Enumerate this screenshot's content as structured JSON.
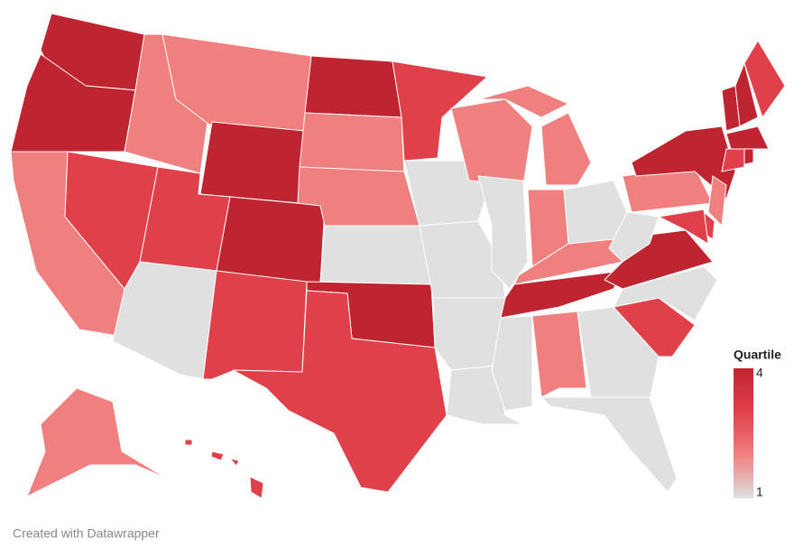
{
  "chart_data": {
    "type": "choropleth",
    "values": [
      4,
      4,
      2,
      3,
      2,
      2,
      4,
      3,
      1,
      4,
      3,
      4,
      2,
      2,
      1,
      4,
      3,
      3,
      1,
      1,
      1,
      1,
      2,
      1,
      2,
      2,
      1,
      2,
      4,
      1,
      2,
      1,
      1,
      3,
      1,
      4,
      1,
      2,
      4,
      4,
      4,
      3,
      4,
      3,
      4,
      2,
      3,
      3,
      2,
      3
    ],
    "colors": [
      "#e0e0e0",
      "#f08080",
      "#e0404a",
      "#bf2530"
    ],
    "legend": {
      "title": "Quartile",
      "min": 1,
      "max": 4
    },
    "footer": "Created with Datawrapper"
  }
}
